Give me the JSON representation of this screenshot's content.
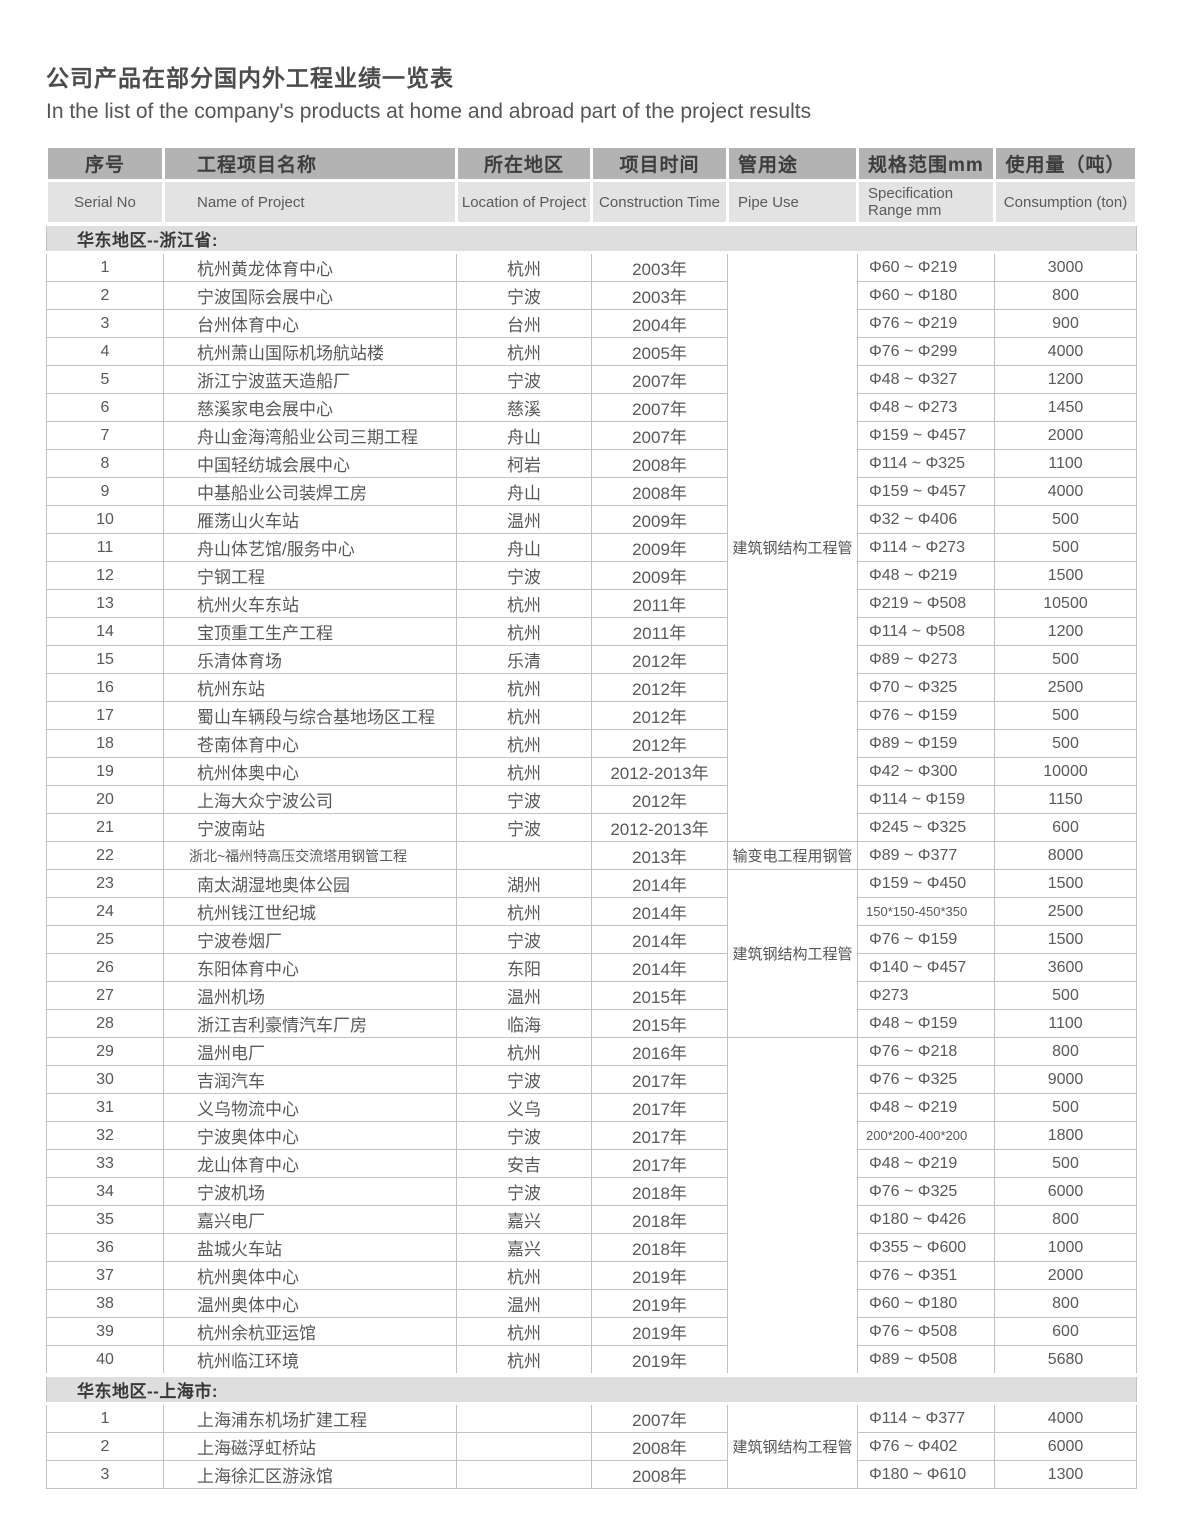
{
  "page": {
    "title_zh": "公司产品在部分国内外工程业绩一览表",
    "title_en": "In the list of the company's products at home and abroad part of the project results"
  },
  "table": {
    "columns_zh": [
      "序号",
      "工程项目名称",
      "所在地区",
      "项目时间",
      "管用途",
      "规格范围mm",
      "使用量（吨）"
    ],
    "columns_en": [
      "Serial No",
      "Name of Project",
      "Location of Project",
      "Construction Time",
      "Pipe Use",
      "Specification Range mm",
      "Consumption (ton)"
    ],
    "colors": {
      "header_zh_bg": "#b3b3b3",
      "header_en_bg": "#e3e3e3",
      "section_bg": "#dedede",
      "border": "#c2c2c2",
      "text": "#585858"
    },
    "sections": [
      {
        "label": "华东地区--浙江省:",
        "pipe_spans": [
          {
            "start": 0,
            "count": 21,
            "label": "建筑钢结构工程管"
          },
          {
            "start": 21,
            "count": 1,
            "label": "输变电工程用钢管"
          },
          {
            "start": 22,
            "count": 6,
            "label": "建筑钢结构工程管"
          },
          {
            "start": 28,
            "count": 12,
            "label": ""
          }
        ],
        "rows": [
          {
            "no": "1",
            "name": "杭州黄龙体育中心",
            "loc": "杭州",
            "time": "2003年",
            "spec": "Φ60 ~ Φ219",
            "qty": "3000"
          },
          {
            "no": "2",
            "name": "宁波国际会展中心",
            "loc": "宁波",
            "time": "2003年",
            "spec": "Φ60 ~ Φ180",
            "qty": "800"
          },
          {
            "no": "3",
            "name": "台州体育中心",
            "loc": "台州",
            "time": "2004年",
            "spec": "Φ76 ~ Φ219",
            "qty": "900"
          },
          {
            "no": "4",
            "name": "杭州萧山国际机场航站楼",
            "loc": "杭州",
            "time": "2005年",
            "spec": "Φ76 ~ Φ299",
            "qty": "4000"
          },
          {
            "no": "5",
            "name": "浙江宁波蓝天造船厂",
            "loc": "宁波",
            "time": "2007年",
            "spec": "Φ48 ~ Φ327",
            "qty": "1200"
          },
          {
            "no": "6",
            "name": "慈溪家电会展中心",
            "loc": "慈溪",
            "time": "2007年",
            "spec": "Φ48 ~ Φ273",
            "qty": "1450"
          },
          {
            "no": "7",
            "name": "舟山金海湾船业公司三期工程",
            "loc": "舟山",
            "time": "2007年",
            "spec": "Φ159 ~ Φ457",
            "qty": "2000"
          },
          {
            "no": "8",
            "name": "中国轻纺城会展中心",
            "loc": "柯岩",
            "time": "2008年",
            "spec": "Φ114 ~ Φ325",
            "qty": "1100"
          },
          {
            "no": "9",
            "name": "中基船业公司装焊工房",
            "loc": "舟山",
            "time": "2008年",
            "spec": "Φ159 ~ Φ457",
            "qty": "4000"
          },
          {
            "no": "10",
            "name": "雁荡山火车站",
            "loc": "温州",
            "time": "2009年",
            "spec": "Φ32 ~ Φ406",
            "qty": "500"
          },
          {
            "no": "11",
            "name": "舟山体艺馆/服务中心",
            "loc": "舟山",
            "time": "2009年",
            "spec": "Φ114 ~ Φ273",
            "qty": "500"
          },
          {
            "no": "12",
            "name": "宁钢工程",
            "loc": "宁波",
            "time": "2009年",
            "spec": "Φ48 ~ Φ219",
            "qty": "1500"
          },
          {
            "no": "13",
            "name": "杭州火车东站",
            "loc": "杭州",
            "time": "2011年",
            "spec": "Φ219 ~ Φ508",
            "qty": "10500"
          },
          {
            "no": "14",
            "name": "宝顶重工生产工程",
            "loc": "杭州",
            "time": "2011年",
            "spec": "Φ114 ~ Φ508",
            "qty": "1200"
          },
          {
            "no": "15",
            "name": "乐清体育场",
            "loc": "乐清",
            "time": "2012年",
            "spec": "Φ89 ~ Φ273",
            "qty": "500"
          },
          {
            "no": "16",
            "name": "杭州东站",
            "loc": "杭州",
            "time": "2012年",
            "spec": "Φ70 ~ Φ325",
            "qty": "2500"
          },
          {
            "no": "17",
            "name": "蜀山车辆段与综合基地场区工程",
            "loc": "杭州",
            "time": "2012年",
            "spec": "Φ76 ~ Φ159",
            "qty": "500"
          },
          {
            "no": "18",
            "name": "苍南体育中心",
            "loc": "杭州",
            "time": "2012年",
            "spec": "Φ89 ~ Φ159",
            "qty": "500"
          },
          {
            "no": "19",
            "name": "杭州体奥中心",
            "loc": "杭州",
            "time": "2012-2013年",
            "spec": "Φ42 ~ Φ300",
            "qty": "10000"
          },
          {
            "no": "20",
            "name": "上海大众宁波公司",
            "loc": "宁波",
            "time": "2012年",
            "spec": "Φ114 ~ Φ159",
            "qty": "1150"
          },
          {
            "no": "21",
            "name": "宁波南站",
            "loc": "宁波",
            "time": "2012-2013年",
            "spec": "Φ245 ~ Φ325",
            "qty": "600"
          },
          {
            "no": "22",
            "name": "浙北~福州特高压交流塔用钢管工程",
            "loc": "",
            "time": "2013年",
            "spec": "Φ89 ~ Φ377",
            "qty": "8000"
          },
          {
            "no": "23",
            "name": "南太湖湿地奥体公园",
            "loc": "湖州",
            "time": "2014年",
            "spec": "Φ159 ~ Φ450",
            "qty": "1500"
          },
          {
            "no": "24",
            "name": "杭州钱江世纪城",
            "loc": "杭州",
            "time": "2014年",
            "spec": "150*150-450*350",
            "qty": "2500"
          },
          {
            "no": "25",
            "name": "宁波卷烟厂",
            "loc": "宁波",
            "time": "2014年",
            "spec": "Φ76 ~ Φ159",
            "qty": "1500"
          },
          {
            "no": "26",
            "name": "东阳体育中心",
            "loc": "东阳",
            "time": "2014年",
            "spec": "Φ140 ~ Φ457",
            "qty": "3600"
          },
          {
            "no": "27",
            "name": "温州机场",
            "loc": "温州",
            "time": "2015年",
            "spec": "Φ273",
            "qty": "500"
          },
          {
            "no": "28",
            "name": "浙江吉利豪情汽车厂房",
            "loc": "临海",
            "time": "2015年",
            "spec": "Φ48 ~ Φ159",
            "qty": "1100"
          },
          {
            "no": "29",
            "name": "温州电厂",
            "loc": "杭州",
            "time": "2016年",
            "spec": "Φ76 ~ Φ218",
            "qty": "800"
          },
          {
            "no": "30",
            "name": "吉润汽车",
            "loc": "宁波",
            "time": "2017年",
            "spec": "Φ76 ~ Φ325",
            "qty": "9000"
          },
          {
            "no": "31",
            "name": "义乌物流中心",
            "loc": "义乌",
            "time": "2017年",
            "spec": "Φ48 ~ Φ219",
            "qty": "500"
          },
          {
            "no": "32",
            "name": "宁波奥体中心",
            "loc": "宁波",
            "time": "2017年",
            "spec": "200*200-400*200",
            "qty": "1800"
          },
          {
            "no": "33",
            "name": "龙山体育中心",
            "loc": "安吉",
            "time": "2017年",
            "spec": "Φ48 ~ Φ219",
            "qty": "500"
          },
          {
            "no": "34",
            "name": "宁波机场",
            "loc": "宁波",
            "time": "2018年",
            "spec": "Φ76 ~ Φ325",
            "qty": "6000"
          },
          {
            "no": "35",
            "name": "嘉兴电厂",
            "loc": "嘉兴",
            "time": "2018年",
            "spec": "Φ180 ~ Φ426",
            "qty": "800"
          },
          {
            "no": "36",
            "name": "盐城火车站",
            "loc": "嘉兴",
            "time": "2018年",
            "spec": "Φ355 ~ Φ600",
            "qty": "1000"
          },
          {
            "no": "37",
            "name": "杭州奥体中心",
            "loc": "杭州",
            "time": "2019年",
            "spec": "Φ76 ~ Φ351",
            "qty": "2000"
          },
          {
            "no": "38",
            "name": "温州奥体中心",
            "loc": "温州",
            "time": "2019年",
            "spec": "Φ60 ~ Φ180",
            "qty": "800"
          },
          {
            "no": "39",
            "name": "杭州余杭亚运馆",
            "loc": "杭州",
            "time": "2019年",
            "spec": "Φ76 ~ Φ508",
            "qty": "600"
          },
          {
            "no": "40",
            "name": "杭州临江环境",
            "loc": "杭州",
            "time": "2019年",
            "spec": "Φ89 ~ Φ508",
            "qty": "5680"
          }
        ]
      },
      {
        "label": "华东地区--上海市:",
        "pipe_spans": [
          {
            "start": 0,
            "count": 3,
            "label": "建筑钢结构工程管"
          }
        ],
        "rows": [
          {
            "no": "1",
            "name": "上海浦东机场扩建工程",
            "loc": "",
            "time": "2007年",
            "spec": "Φ114 ~ Φ377",
            "qty": "4000"
          },
          {
            "no": "2",
            "name": "上海磁浮虹桥站",
            "loc": "",
            "time": "2008年",
            "spec": "Φ76 ~ Φ402",
            "qty": "6000"
          },
          {
            "no": "3",
            "name": "上海徐汇区游泳馆",
            "loc": "",
            "time": "2008年",
            "spec": "Φ180 ~ Φ610",
            "qty": "1300"
          }
        ]
      }
    ]
  }
}
